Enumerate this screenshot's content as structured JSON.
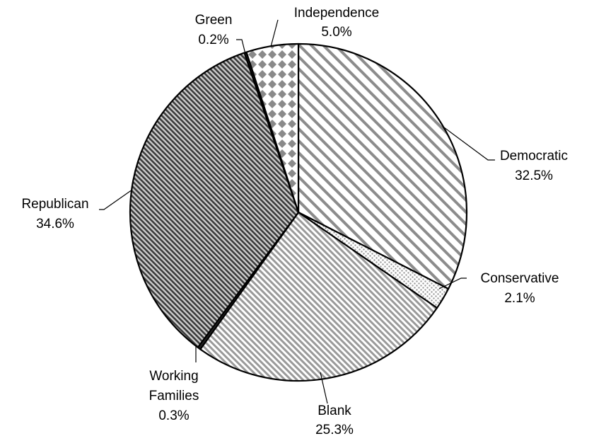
{
  "chart_data": {
    "type": "pie",
    "title": "",
    "start_angle_deg": 0,
    "direction": "clockwise",
    "slices": [
      {
        "name": "Democratic",
        "value": 32.5,
        "label": "32.5%",
        "pattern": "diag-wide"
      },
      {
        "name": "Conservative",
        "value": 2.1,
        "label": "2.1%",
        "pattern": "dots"
      },
      {
        "name": "Blank",
        "value": 25.3,
        "label": "25.3%",
        "pattern": "diag-fine"
      },
      {
        "name": "Working Families",
        "value": 0.3,
        "label": "0.3%",
        "pattern": "solid-dark"
      },
      {
        "name": "Republican",
        "value": 34.6,
        "label": "34.6%",
        "pattern": "diag-dense"
      },
      {
        "name": "Green",
        "value": 0.2,
        "label": "0.2%",
        "pattern": "solid-dark"
      },
      {
        "name": "Independence",
        "value": 5.0,
        "label": "5.0%",
        "pattern": "diamonds"
      }
    ],
    "legend": "none",
    "labels_placement": "outside-with-leader-lines"
  },
  "labels": {
    "democratic_name": "Democratic",
    "democratic_pct": "32.5%",
    "conservative_name": "Conservative",
    "conservative_pct": "2.1%",
    "blank_name": "Blank",
    "blank_pct": "25.3%",
    "working_families_name_1": "Working",
    "working_families_name_2": "Families",
    "working_families_pct": "0.3%",
    "republican_name": "Republican",
    "republican_pct": "34.6%",
    "green_name": "Green",
    "green_pct": "0.2%",
    "independence_name": "Independence",
    "independence_pct": "5.0%"
  }
}
